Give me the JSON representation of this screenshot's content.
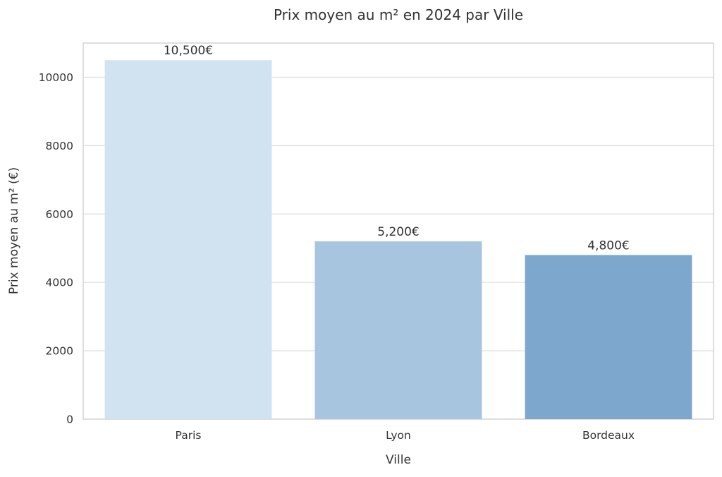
{
  "chart_data": {
    "type": "bar",
    "title": "Prix moyen au m² en 2024 par Ville",
    "xlabel": "Ville",
    "ylabel": "Prix moyen au m² (€)",
    "categories": [
      "Paris",
      "Lyon",
      "Bordeaux"
    ],
    "values": [
      10500,
      5200,
      4800
    ],
    "value_labels": [
      "10,500€",
      "5,200€",
      "4,800€"
    ],
    "colors": [
      "#d1e3f0",
      "#a7c5df",
      "#7ea7ce"
    ],
    "ylim": [
      0,
      11000
    ],
    "yticks": [
      0,
      2000,
      4000,
      6000,
      8000,
      10000
    ],
    "ytick_labels": [
      "0",
      "2000",
      "4000",
      "6000",
      "8000",
      "10000"
    ],
    "grid": true,
    "grid_axis": "y",
    "legend": false
  }
}
